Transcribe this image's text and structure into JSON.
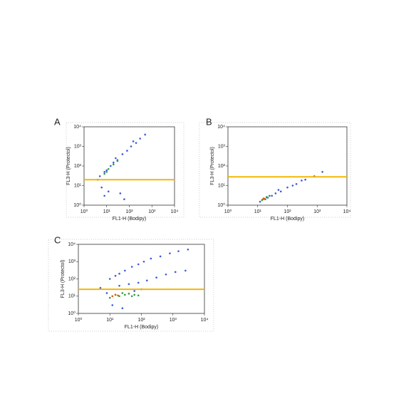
{
  "chart_data": [
    {
      "type": "scatter",
      "panel_label": "A",
      "xlabel": "FL1-H (Bodipy)",
      "ylabel": "FL3-H (Protectol)",
      "log_scale": true,
      "xlim": [
        1,
        10000
      ],
      "ylim": [
        1,
        10000
      ],
      "xticks": [
        {
          "value": 1,
          "label": "10⁰"
        },
        {
          "value": 10,
          "label": "10¹"
        },
        {
          "value": 100,
          "label": "10²"
        },
        {
          "value": 1000,
          "label": "10³"
        },
        {
          "value": 10000,
          "label": "10⁴"
        }
      ],
      "yticks": [
        {
          "value": 1,
          "label": "10⁰"
        },
        {
          "value": 10,
          "label": "10¹"
        },
        {
          "value": 100,
          "label": "10²"
        },
        {
          "value": 1000,
          "label": "10³"
        },
        {
          "value": 10000,
          "label": "10⁴"
        }
      ],
      "hline": 20,
      "hline_color": "#f2b705",
      "series": [
        {
          "color": "#3b5bdb",
          "x": [
            5,
            8,
            10,
            15,
            20,
            30,
            50,
            80,
            120,
            200,
            300,
            500,
            6,
            8,
            12,
            40,
            60,
            25,
            4,
            150
          ],
          "values": [
            30,
            50,
            60,
            100,
            150,
            200,
            400,
            600,
            1000,
            1500,
            2500,
            4000,
            8,
            3,
            5,
            4,
            2,
            250,
            20,
            1800
          ]
        },
        {
          "color": "#2f9e44",
          "x": [
            8,
            10,
            12,
            20,
            30
          ],
          "values": [
            40,
            50,
            70,
            120,
            180
          ]
        }
      ]
    },
    {
      "type": "scatter",
      "panel_label": "B",
      "xlabel": "FL1-H (Bodipy)",
      "ylabel": "FL3-H (Protectol)",
      "log_scale": true,
      "xlim": [
        1,
        10000
      ],
      "ylim": [
        1,
        10000
      ],
      "xticks": [
        {
          "value": 1,
          "label": "10⁰"
        },
        {
          "value": 10,
          "label": "10¹"
        },
        {
          "value": 100,
          "label": "10²"
        },
        {
          "value": 1000,
          "label": "10³"
        },
        {
          "value": 10000,
          "label": "10⁴"
        }
      ],
      "yticks": [
        {
          "value": 1,
          "label": "10⁰"
        },
        {
          "value": 10,
          "label": "10¹"
        },
        {
          "value": 100,
          "label": "10²"
        },
        {
          "value": 1000,
          "label": "10³"
        },
        {
          "value": 10000,
          "label": "10⁴"
        }
      ],
      "hline": 28,
      "hline_color": "#f2b705",
      "series": [
        {
          "color": "#3b5bdb",
          "x": [
            12,
            15,
            18,
            20,
            25,
            30,
            40,
            60,
            100,
            200,
            400,
            800,
            1500,
            50,
            150,
            300
          ],
          "values": [
            1.5,
            2,
            2,
            2.5,
            3,
            3,
            4,
            5,
            8,
            12,
            20,
            30,
            50,
            6,
            10,
            18
          ]
        },
        {
          "color": "#2f9e44",
          "x": [
            14,
            16,
            18,
            20,
            22
          ],
          "values": [
            1.8,
            2.2,
            2,
            2.6,
            2.4
          ]
        },
        {
          "color": "#e8590c",
          "x": [
            15,
            17
          ],
          "values": [
            2,
            2.1
          ]
        }
      ]
    },
    {
      "type": "scatter",
      "panel_label": "C",
      "xlabel": "FL1-H (Bodipy)",
      "ylabel": "FL3-H (Protectol)",
      "log_scale": true,
      "xlim": [
        1,
        10000
      ],
      "ylim": [
        1,
        10000
      ],
      "xticks": [
        {
          "value": 1,
          "label": "10⁰"
        },
        {
          "value": 10,
          "label": "10¹"
        },
        {
          "value": 100,
          "label": "10²"
        },
        {
          "value": 1000,
          "label": "10³"
        },
        {
          "value": 10000,
          "label": "10⁴"
        }
      ],
      "yticks": [
        {
          "value": 1,
          "label": "10⁰"
        },
        {
          "value": 10,
          "label": "10¹"
        },
        {
          "value": 100,
          "label": "10²"
        },
        {
          "value": 1000,
          "label": "10³"
        },
        {
          "value": 10000,
          "label": "10⁴"
        }
      ],
      "hline": 25,
      "hline_color": "#f2b705",
      "series": [
        {
          "color": "#3b5bdb",
          "x": [
            10,
            15,
            20,
            30,
            50,
            80,
            120,
            200,
            400,
            800,
            1500,
            3000,
            20,
            40,
            80,
            150,
            300,
            600,
            1200,
            2500,
            5,
            8,
            60,
            100,
            12,
            25
          ],
          "values": [
            100,
            150,
            200,
            300,
            500,
            700,
            1000,
            1500,
            2000,
            3000,
            4000,
            5000,
            40,
            50,
            60,
            80,
            120,
            180,
            250,
            300,
            30,
            15,
            20,
            25,
            3,
            2
          ]
        },
        {
          "color": "#2f9e44",
          "x": [
            10,
            12,
            15,
            20,
            25,
            30,
            40,
            50,
            60,
            80
          ],
          "values": [
            8,
            10,
            12,
            10,
            15,
            12,
            14,
            10,
            12,
            11
          ]
        },
        {
          "color": "#e8590c",
          "x": [
            12,
            15,
            18
          ],
          "values": [
            10,
            12,
            11
          ]
        }
      ]
    }
  ]
}
